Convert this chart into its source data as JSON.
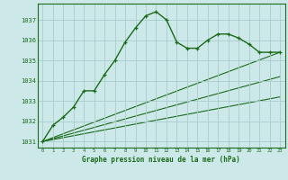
{
  "background_color": "#cce8e8",
  "grid_color": "#aacccc",
  "line_color": "#1a6b1a",
  "title": "Graphe pression niveau de la mer (hPa)",
  "xlim": [
    -0.5,
    23.5
  ],
  "ylim": [
    1030.7,
    1037.8
  ],
  "yticks": [
    1031,
    1032,
    1033,
    1034,
    1035,
    1036,
    1037
  ],
  "xticks": [
    0,
    1,
    2,
    3,
    4,
    5,
    6,
    7,
    8,
    9,
    10,
    11,
    12,
    13,
    14,
    15,
    16,
    17,
    18,
    19,
    20,
    21,
    22,
    23
  ],
  "series_main": {
    "x": [
      0,
      1,
      2,
      3,
      4,
      5,
      6,
      7,
      8,
      9,
      10,
      11,
      12,
      13,
      14,
      15,
      16,
      17,
      18,
      19,
      20,
      21,
      22,
      23
    ],
    "y": [
      1031.0,
      1031.8,
      1032.2,
      1032.7,
      1033.5,
      1033.5,
      1034.3,
      1035.0,
      1035.9,
      1036.6,
      1037.2,
      1037.4,
      1037.0,
      1035.9,
      1035.6,
      1035.6,
      1036.0,
      1036.3,
      1036.3,
      1036.1,
      1035.8,
      1035.4,
      1035.4,
      1035.4
    ]
  },
  "trend_lines": [
    {
      "x": [
        0,
        23
      ],
      "y": [
        1031.0,
        1033.2
      ]
    },
    {
      "x": [
        0,
        23
      ],
      "y": [
        1031.0,
        1034.2
      ]
    },
    {
      "x": [
        0,
        23
      ],
      "y": [
        1031.0,
        1035.4
      ]
    }
  ]
}
